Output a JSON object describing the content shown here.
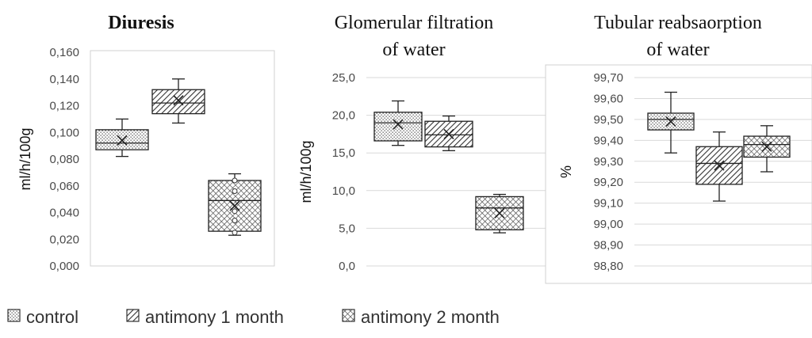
{
  "legend": [
    {
      "label": "control",
      "pattern": "dots"
    },
    {
      "label": "antimony 1 month",
      "pattern": "diag"
    },
    {
      "label": "antimony 2 month",
      "pattern": "cross"
    }
  ],
  "chart_data": [
    {
      "type": "box",
      "title_lines": [
        "Diuresis"
      ],
      "title_bold": true,
      "ylabel": "ml/h/100g",
      "ylim": [
        0,
        0.16
      ],
      "yticks": [
        "0,000",
        "0,020",
        "0,040",
        "0,060",
        "0,080",
        "0,100",
        "0,120",
        "0,140",
        "0,160"
      ],
      "grid": false,
      "frame": true,
      "boxes": [
        {
          "group": "control",
          "min": 0.082,
          "q1": 0.087,
          "median": 0.092,
          "q3": 0.102,
          "max": 0.11,
          "mean": 0.094,
          "points": []
        },
        {
          "group": "antimony 1 month",
          "min": 0.107,
          "q1": 0.114,
          "median": 0.122,
          "q3": 0.132,
          "max": 0.14,
          "mean": 0.124,
          "points": []
        },
        {
          "group": "antimony 2 month",
          "min": 0.023,
          "q1": 0.026,
          "median": 0.049,
          "q3": 0.064,
          "max": 0.069,
          "mean": 0.045,
          "points": [
            0.025,
            0.034,
            0.041,
            0.056,
            0.064
          ]
        }
      ]
    },
    {
      "type": "box",
      "title_lines": [
        "Glomerular filtration",
        "of water"
      ],
      "title_bold": false,
      "ylabel": "ml/h/100g",
      "ylim": [
        0,
        25
      ],
      "yticks": [
        "0,0",
        "5,0",
        "10,0",
        "15,0",
        "20,0",
        "25,0"
      ],
      "grid": true,
      "frame": false,
      "boxes": [
        {
          "group": "control",
          "min": 16.0,
          "q1": 16.6,
          "median": 19.0,
          "q3": 20.4,
          "max": 21.9,
          "mean": 18.8,
          "points": []
        },
        {
          "group": "antimony 1 month",
          "min": 15.3,
          "q1": 15.8,
          "median": 17.4,
          "q3": 19.2,
          "max": 19.9,
          "mean": 17.5,
          "points": []
        },
        {
          "group": "antimony 2 month",
          "min": 4.4,
          "q1": 4.8,
          "median": 7.7,
          "q3": 9.2,
          "max": 9.5,
          "mean": 7.0,
          "points": []
        }
      ]
    },
    {
      "type": "box",
      "title_lines": [
        "Tubular reabsaorption",
        "of water"
      ],
      "title_bold": false,
      "ylabel": "%",
      "ylim": [
        98.8,
        99.7
      ],
      "yticks": [
        "98,80",
        "98,90",
        "99,00",
        "99,10",
        "99,20",
        "99,30",
        "99,40",
        "99,50",
        "99,60",
        "99,70"
      ],
      "grid": true,
      "frame": true,
      "boxes": [
        {
          "group": "control",
          "min": 99.34,
          "q1": 99.45,
          "median": 99.5,
          "q3": 99.53,
          "max": 99.63,
          "mean": 99.49,
          "points": []
        },
        {
          "group": "antimony 1 month",
          "min": 99.11,
          "q1": 99.19,
          "median": 99.29,
          "q3": 99.37,
          "max": 99.44,
          "mean": 99.28,
          "points": []
        },
        {
          "group": "antimony 2 month",
          "min": 99.25,
          "q1": 99.32,
          "median": 99.38,
          "q3": 99.42,
          "max": 99.47,
          "mean": 99.37,
          "points": []
        }
      ]
    }
  ]
}
